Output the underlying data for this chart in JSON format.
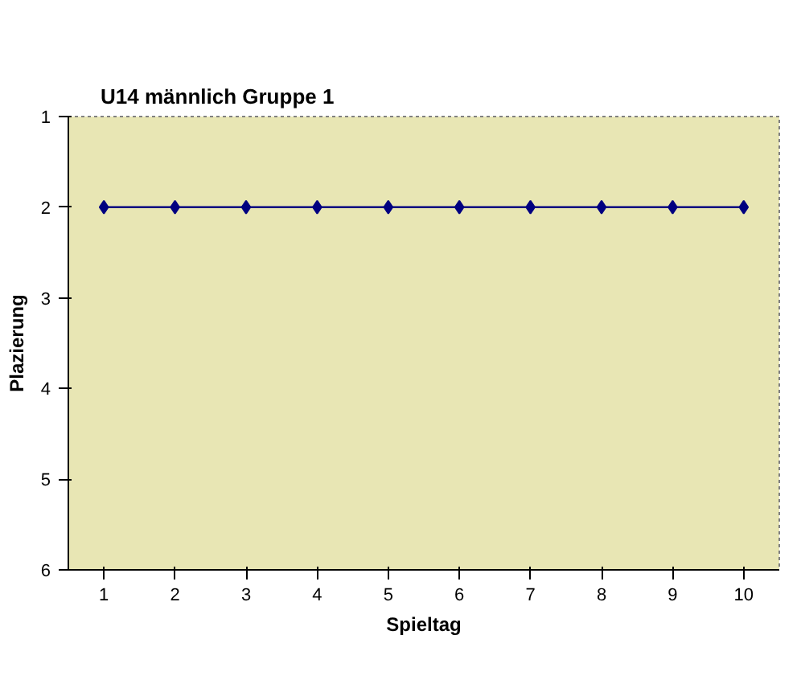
{
  "chart_data": {
    "type": "line",
    "title": "U14 männlich Gruppe 1",
    "xlabel": "Spieltag",
    "ylabel": "Plazierung",
    "categories": [
      "1",
      "2",
      "3",
      "4",
      "5",
      "6",
      "7",
      "8",
      "9",
      "10"
    ],
    "series": [
      {
        "color": "#000080",
        "values": [
          2,
          2,
          2,
          2,
          2,
          2,
          2,
          2,
          2,
          2
        ]
      }
    ],
    "ylim": [
      6,
      1
    ],
    "yticks": [
      1,
      2,
      3,
      4,
      5,
      6
    ],
    "grid": false,
    "marker": "diamond",
    "line_style": "solid"
  }
}
